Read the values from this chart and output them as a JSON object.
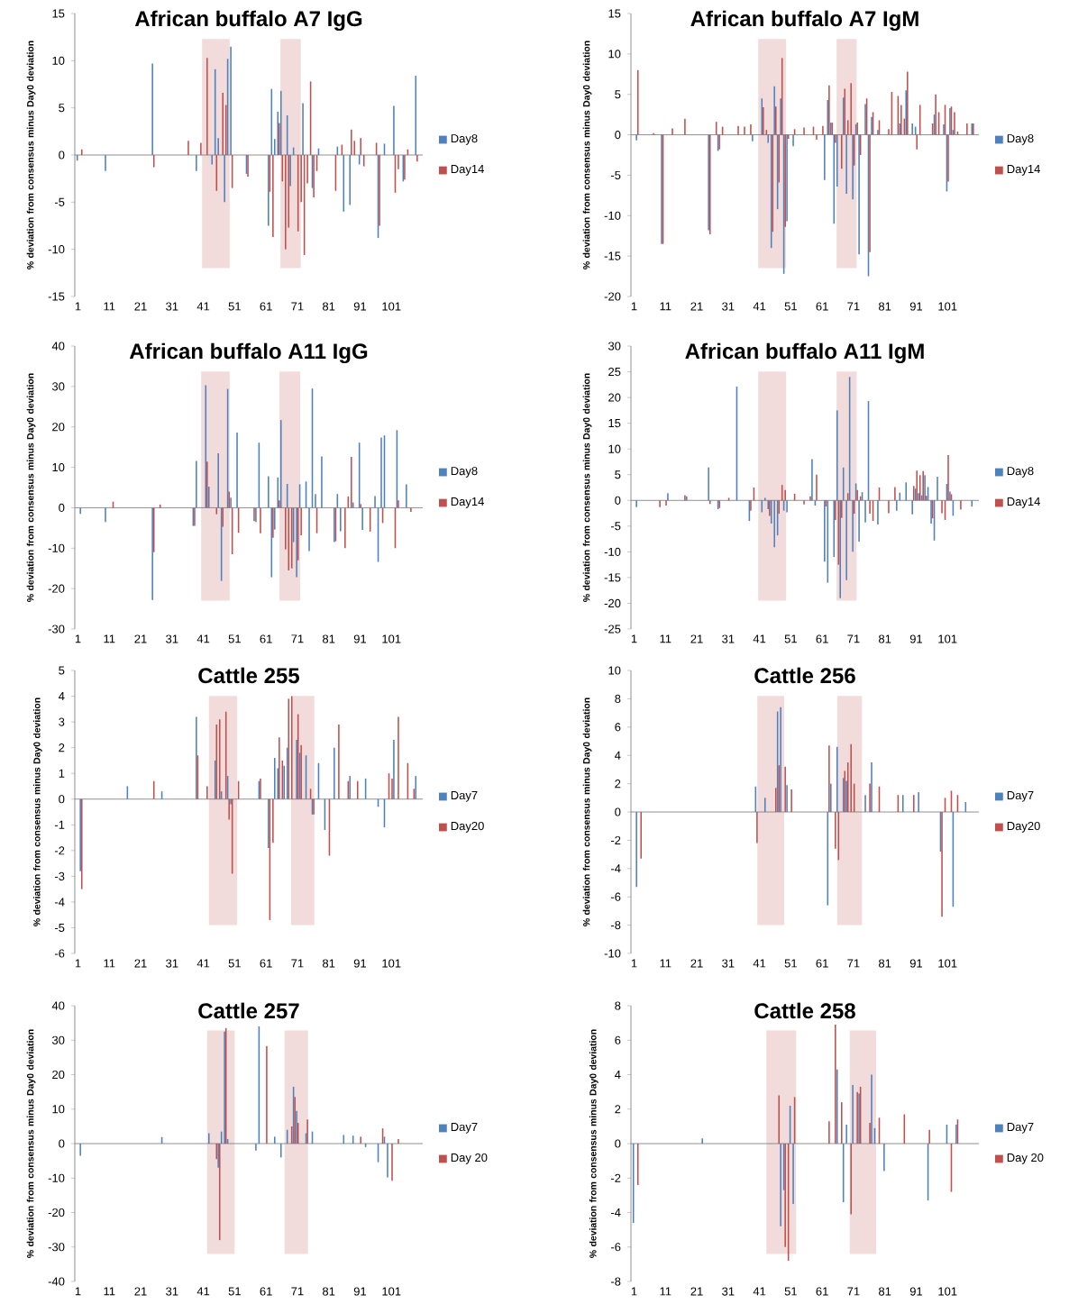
{
  "chart_data": [
    {
      "type": "bar",
      "title": "African buffalo A7 IgG",
      "ylabel": "% deviation from consensus minus Day0 deviation",
      "xlim": [
        0,
        111
      ],
      "xticks": [
        1,
        11,
        21,
        31,
        41,
        51,
        61,
        71,
        81,
        91,
        101
      ],
      "ylim": [
        -15,
        15
      ],
      "yticks": [
        -15,
        -10,
        -5,
        0,
        5,
        10,
        15
      ],
      "legend": "right",
      "bands": [
        {
          "axis": "x",
          "from": 40.6,
          "to": 49.4,
          "color": "#f2dcdb"
        },
        {
          "axis": "x",
          "from": 65.6,
          "to": 72.1,
          "color": "#f2dcdb"
        }
      ],
      "series": [
        {
          "name": "Day8",
          "color": "#4f81bd",
          "x": [
            1,
            10,
            25,
            39,
            44,
            45,
            46,
            48,
            49,
            50,
            55,
            62,
            63,
            64,
            65,
            66,
            68,
            69,
            70,
            73,
            76,
            78,
            84,
            86,
            88,
            91,
            97,
            99,
            102,
            105,
            109
          ],
          "values": [
            -0.6,
            -1.7,
            9.7,
            -1.7,
            -1,
            9.1,
            1.8,
            -5,
            10.2,
            11.5,
            -2,
            -7.5,
            7,
            1.7,
            4.6,
            6.8,
            4.2,
            -3.3,
            0.8,
            5.5,
            -3.5,
            0.7,
            0.9,
            -6,
            -5.3,
            -1,
            -8.8,
            1.2,
            5.2,
            -2.8,
            8.4
          ]
        },
        {
          "name": "Day14",
          "color": "#c0504d",
          "x": [
            2,
            25,
            36,
            40,
            42,
            45,
            47,
            48,
            50,
            55,
            62,
            63,
            65,
            66,
            67,
            68,
            71,
            72,
            73,
            74,
            75,
            76,
            77,
            83,
            85,
            88,
            89,
            91,
            92,
            96,
            97,
            102,
            103,
            105,
            106,
            109
          ],
          "values": [
            0.6,
            -1.3,
            1.5,
            1.3,
            10.3,
            -3.8,
            6.6,
            5.3,
            -3.5,
            -2.3,
            -3.9,
            -8.7,
            3.4,
            -2.8,
            -10,
            -7.7,
            -8.1,
            -5,
            -10.6,
            -3,
            7.8,
            -4.5,
            -1.7,
            -3.8,
            1.1,
            2.7,
            1.5,
            1.8,
            -1.2,
            1.3,
            -7.5,
            -4,
            -1.5,
            -2.6,
            0.6,
            -0.7
          ]
        }
      ]
    },
    {
      "type": "bar",
      "title": "African buffalo A7 IgM",
      "ylabel": "% deviation from consensus minus Day0 deviation",
      "xlim": [
        0,
        111
      ],
      "xticks": [
        1,
        11,
        21,
        31,
        41,
        51,
        61,
        71,
        81,
        91,
        101
      ],
      "ylim": [
        -20,
        15
      ],
      "yticks": [
        -20,
        -15,
        -10,
        -5,
        0,
        5,
        10,
        15
      ],
      "legend": "right",
      "bands": [
        {
          "axis": "x",
          "from": 40.6,
          "to": 49.5,
          "color": "#f2dcdb"
        },
        {
          "axis": "x",
          "from": 65.6,
          "to": 72.0,
          "color": "#f2dcdb"
        }
      ],
      "series": [
        {
          "name": "Day8",
          "color": "#4f81bd",
          "x": [
            2,
            10,
            25,
            28,
            39,
            42,
            44,
            45,
            46,
            47,
            48,
            49,
            50,
            52,
            62,
            63,
            64,
            65,
            66,
            68,
            69,
            71,
            72,
            73,
            75,
            76,
            77,
            79,
            86,
            88,
            90,
            91,
            97,
            100,
            101,
            102,
            103,
            109
          ],
          "values": [
            -0.7,
            -13.5,
            -11.8,
            -2,
            -0.8,
            4.5,
            -1,
            -14,
            6,
            -9.2,
            4.5,
            -17.2,
            -10.7,
            -1.4,
            -5.6,
            4.3,
            1.5,
            -11,
            -6.4,
            4.6,
            -7.3,
            -8,
            1.3,
            -14.8,
            3.8,
            -17.5,
            2.2,
            0.6,
            1.4,
            5.5,
            1.4,
            1,
            2.5,
            1.3,
            -7,
            3.3,
            0.6,
            1.4
          ]
        },
        {
          "name": "Day14",
          "color": "#c0504d",
          "x": [
            2,
            7,
            10,
            13,
            17,
            25,
            27,
            28,
            29,
            34,
            36,
            38,
            42,
            43,
            45,
            46,
            47,
            48,
            49,
            50,
            52,
            55,
            58,
            59,
            61,
            63,
            64,
            65,
            67,
            68,
            69,
            70,
            71,
            72,
            73,
            75,
            76,
            77,
            79,
            82,
            83,
            85,
            86,
            87,
            88,
            91,
            92,
            96,
            97,
            98,
            100,
            101,
            102,
            103,
            104,
            107,
            109
          ],
          "values": [
            8,
            0.2,
            -13.5,
            0.8,
            2,
            -12.3,
            1.6,
            -1.8,
            1,
            1.1,
            1,
            1.3,
            3.4,
            0.6,
            -12,
            3.5,
            -5.9,
            9.5,
            -11.4,
            -0.5,
            0.7,
            0.9,
            1,
            -0.6,
            1.1,
            6.1,
            1.5,
            -1,
            -4.2,
            5.7,
            1.8,
            6.4,
            -3.8,
            1.5,
            -2.5,
            4.5,
            -14.5,
            2.8,
            1.8,
            0.7,
            5.3,
            4.8,
            3.7,
            2,
            7.8,
            -1.8,
            3.7,
            1.4,
            5,
            2.8,
            3.7,
            -5.8,
            3.5,
            2.8,
            0.4,
            1.4,
            1.4
          ]
        }
      ]
    },
    {
      "type": "bar",
      "title": "African buffalo A11 IgG",
      "ylabel": "% deviation from consensus minus Day0 deviation",
      "xlim": [
        0,
        111
      ],
      "xticks": [
        1,
        11,
        21,
        31,
        41,
        51,
        61,
        71,
        81,
        91,
        101
      ],
      "ylim": [
        -30,
        40
      ],
      "yticks": [
        -30,
        -20,
        -10,
        0,
        10,
        20,
        30,
        40
      ],
      "legend": "right",
      "bands": [
        {
          "axis": "x",
          "from": 40.3,
          "to": 49.4,
          "color": "#f2dcdb"
        },
        {
          "axis": "x",
          "from": 65.3,
          "to": 71.9,
          "color": "#f2dcdb"
        }
      ],
      "series": [
        {
          "name": "Day8",
          "color": "#4f81bd",
          "x": [
            2,
            10,
            25,
            38,
            39,
            42,
            43,
            46,
            47,
            49,
            50,
            52,
            58,
            59,
            62,
            63,
            64,
            65,
            66,
            68,
            70,
            71,
            72,
            74,
            75,
            76,
            77,
            79,
            83,
            84,
            85,
            89,
            91,
            92,
            96,
            97,
            98,
            99,
            103,
            106
          ],
          "values": [
            -1.5,
            -3.5,
            -22.8,
            -4.5,
            11.6,
            30.3,
            5.2,
            13.5,
            -18.1,
            29.4,
            2.5,
            18.6,
            -3.5,
            16.1,
            7.8,
            -17.2,
            -5.4,
            7.5,
            21.7,
            5.9,
            -8.5,
            -17.2,
            5.8,
            6.5,
            -10.7,
            29.5,
            3.4,
            12.7,
            -8.5,
            3.4,
            -5.8,
            1.3,
            16.1,
            -5.5,
            2.9,
            -13.4,
            17.4,
            17.9,
            19.2,
            5.8
          ]
        },
        {
          "name": "Day14",
          "color": "#c0504d",
          "x": [
            12,
            25,
            27,
            38,
            42,
            45,
            47,
            49,
            50,
            52,
            57,
            59,
            63,
            65,
            67,
            68,
            69,
            71,
            72,
            77,
            83,
            86,
            87,
            88,
            91,
            94,
            98,
            102,
            103,
            107
          ],
          "values": [
            1.5,
            -11,
            0.8,
            -4.5,
            11.4,
            -1.6,
            -4.7,
            4,
            -11.5,
            -6.2,
            -3.3,
            -6.3,
            -7.4,
            1.8,
            -10.3,
            -15.5,
            -15,
            -13,
            -6.8,
            -6.3,
            -8.3,
            -10,
            2.8,
            12.6,
            0.9,
            -5.9,
            -3.8,
            -10,
            1.8,
            -1
          ]
        }
      ]
    },
    {
      "type": "bar",
      "title": "African buffalo A11 IgM",
      "ylabel": "% deviation from consensus minus Day0 deviation",
      "xlim": [
        0,
        111
      ],
      "xticks": [
        1,
        11,
        21,
        31,
        41,
        51,
        61,
        71,
        81,
        91,
        101
      ],
      "ylim": [
        -25,
        30
      ],
      "yticks": [
        -25,
        -20,
        -15,
        -10,
        -5,
        0,
        5,
        10,
        15,
        20,
        25,
        30
      ],
      "legend": "right",
      "bands": [
        {
          "axis": "x",
          "from": 40.6,
          "to": 49.5,
          "color": "#f2dcdb"
        },
        {
          "axis": "x",
          "from": 65.6,
          "to": 72.0,
          "color": "#f2dcdb"
        }
      ],
      "series": [
        {
          "name": "Day8",
          "color": "#4f81bd",
          "x": [
            2,
            12,
            18,
            25,
            28,
            34,
            38,
            42,
            43,
            44,
            45,
            46,
            47,
            49,
            50,
            58,
            59,
            62,
            63,
            65,
            66,
            67,
            68,
            69,
            70,
            71,
            72,
            73,
            74,
            75,
            76,
            79,
            85,
            86,
            88,
            90,
            91,
            92,
            93,
            94,
            95,
            96,
            97,
            98,
            101,
            102,
            103,
            109
          ],
          "values": [
            -1.3,
            1.4,
            0.8,
            6.4,
            -1.7,
            22.1,
            -4,
            -2.3,
            0.5,
            -1.7,
            -4.5,
            -9.1,
            -6.8,
            -2,
            -2.3,
            8,
            -1,
            -11.9,
            -16,
            -11,
            17.5,
            -19,
            6.4,
            -15.5,
            24,
            -10,
            3.3,
            -8,
            1.6,
            -4.3,
            19.3,
            -4.7,
            -2,
            1.5,
            3.5,
            -2.7,
            2.3,
            1.4,
            1,
            4.9,
            2.6,
            -4.5,
            -7.8,
            4.6,
            3.2,
            1.7,
            -3,
            -1.2
          ]
        },
        {
          "name": "Day14",
          "color": "#c0504d",
          "x": [
            9,
            11,
            17,
            25,
            28,
            31,
            38,
            39,
            44,
            47,
            48,
            49,
            52,
            55,
            57,
            59,
            62,
            65,
            66,
            67,
            69,
            71,
            72,
            73,
            76,
            77,
            79,
            82,
            84,
            90,
            91,
            92,
            93,
            94,
            96,
            99,
            100,
            101,
            102,
            105
          ],
          "values": [
            -1.3,
            -1,
            1,
            -0.7,
            -1.5,
            0.5,
            -2,
            2.5,
            -3,
            -2.6,
            3,
            2,
            1.3,
            -0.8,
            0.8,
            5,
            -1.2,
            -3.8,
            -12.5,
            -3.4,
            1.4,
            -2.6,
            2,
            0.8,
            -2.6,
            -4,
            2.5,
            -2.5,
            2.6,
            2.8,
            5.8,
            4.9,
            5.7,
            0.9,
            -3.5,
            -2.5,
            -3.8,
            8.8,
            1.2,
            -1.8
          ]
        }
      ]
    },
    {
      "type": "bar",
      "title": "Cattle 255",
      "ylabel": "% deviation from consensus minus Day0 deviation",
      "xlim": [
        0,
        111
      ],
      "xticks": [
        1,
        11,
        21,
        31,
        41,
        51,
        61,
        71,
        81,
        91,
        101
      ],
      "ylim": [
        -6,
        5
      ],
      "yticks": [
        -6,
        -5,
        -4,
        -3,
        -2,
        -1,
        0,
        1,
        2,
        3,
        4,
        5
      ],
      "legend": "right",
      "bands": [
        {
          "axis": "x",
          "from": 42.8,
          "to": 51.8,
          "color": "#f2dcdb"
        },
        {
          "axis": "x",
          "from": 69.0,
          "to": 76.4,
          "color": "#f2dcdb"
        }
      ],
      "series": [
        {
          "name": "Day7",
          "color": "#4f81bd",
          "x": [
            2,
            17,
            28,
            39,
            45,
            47,
            49,
            50,
            59,
            62,
            64,
            65,
            67,
            68,
            71,
            72,
            74,
            76,
            78,
            80,
            83,
            88,
            93,
            97,
            99,
            102,
            109
          ],
          "values": [
            -2.8,
            0.5,
            0.3,
            3.2,
            1.5,
            0.3,
            0.9,
            -0.2,
            0.7,
            -1.9,
            1.6,
            1.2,
            1.3,
            2,
            2.3,
            1.8,
            1.7,
            -0.6,
            1.4,
            -1.2,
            2,
            0.9,
            0.8,
            -0.3,
            -1.1,
            2.3,
            0.9
          ]
        },
        {
          "name": "Day20",
          "color": "#c0504d",
          "x": [
            2,
            25,
            39,
            42,
            45,
            46,
            48,
            49,
            50,
            52,
            59,
            62,
            63,
            65,
            66,
            68,
            69,
            71,
            72,
            75,
            76,
            81,
            84,
            87,
            90,
            100,
            101,
            103,
            106,
            108
          ],
          "values": [
            -3.5,
            0.7,
            1.7,
            0.5,
            2.9,
            3.1,
            3.4,
            -0.8,
            -2.9,
            0.7,
            0.8,
            -4.7,
            -1.7,
            2.4,
            1.5,
            3.9,
            4,
            3.3,
            2.1,
            0.4,
            -0.6,
            -2.2,
            2.9,
            0.7,
            0.7,
            1,
            0.8,
            3.2,
            1.4,
            0.4
          ]
        }
      ]
    },
    {
      "type": "bar",
      "title": "Cattle 256",
      "ylabel": "% deviation from consensus minus Day0 deviation",
      "xlim": [
        0,
        111
      ],
      "xticks": [
        1,
        11,
        21,
        31,
        41,
        51,
        61,
        71,
        81,
        91,
        101
      ],
      "ylim": [
        -10,
        10
      ],
      "yticks": [
        -10,
        -8,
        -6,
        -4,
        -2,
        0,
        2,
        4,
        6,
        8,
        10
      ],
      "legend": "right",
      "bands": [
        {
          "axis": "x",
          "from": 40.3,
          "to": 48.9,
          "color": "#f2dcdb"
        },
        {
          "axis": "x",
          "from": 65.8,
          "to": 73.7,
          "color": "#f2dcdb"
        }
      ],
      "series": [
        {
          "name": "Day7",
          "color": "#4f81bd",
          "x": [
            2,
            40,
            43,
            47,
            48,
            50,
            63,
            64,
            66,
            68,
            69,
            75,
            77,
            87,
            92,
            99,
            103,
            107
          ],
          "values": [
            -5.3,
            1.8,
            1,
            7.1,
            7.4,
            1.9,
            -6.6,
            2,
            4.6,
            2.4,
            2.2,
            1.2,
            3.5,
            1.2,
            1.4,
            -2.8,
            -6.7,
            0.7
          ]
        },
        {
          "name": "Day20",
          "color": "#c0504d",
          "x": [
            3,
            40,
            46,
            47,
            49,
            51,
            63,
            65,
            66,
            68,
            69,
            70,
            71,
            76,
            79,
            85,
            90,
            99,
            100,
            102,
            104
          ],
          "values": [
            -3.3,
            -2.2,
            1.7,
            3.3,
            3.2,
            1.6,
            4.7,
            -2.6,
            -3.4,
            2.9,
            3.5,
            4.8,
            2,
            2,
            1.8,
            1.2,
            1.2,
            -7.4,
            1,
            1.5,
            1.2
          ]
        }
      ]
    },
    {
      "type": "bar",
      "title": "Cattle 257",
      "ylabel": "% deviation from consensus minus Day0 deviation",
      "xlim": [
        0,
        111
      ],
      "xticks": [
        1,
        11,
        21,
        31,
        41,
        51,
        61,
        71,
        81,
        91,
        101
      ],
      "ylim": [
        -40,
        40
      ],
      "yticks": [
        -40,
        -30,
        -20,
        -10,
        0,
        10,
        20,
        30,
        40
      ],
      "legend": "right",
      "bands": [
        {
          "axis": "x",
          "from": 42.2,
          "to": 51.0,
          "color": "#f2dcdb"
        },
        {
          "axis": "x",
          "from": 66.9,
          "to": 74.4,
          "color": "#f2dcdb"
        }
      ],
      "series": [
        {
          "name": "Day7",
          "color": "#4f81bd",
          "x": [
            2,
            28,
            43,
            46,
            47,
            48,
            49,
            58,
            59,
            64,
            66,
            68,
            70,
            71,
            74,
            76,
            86,
            89,
            93,
            97,
            99,
            100
          ],
          "values": [
            -3.5,
            1.9,
            3,
            -7,
            3.5,
            32.5,
            1.3,
            -2,
            34,
            2,
            -4,
            4,
            16.5,
            9.5,
            3,
            3.5,
            2.5,
            2.3,
            -1,
            -5.4,
            2,
            -9.8
          ]
        },
        {
          "name": "Day 20",
          "color": "#c0504d",
          "x": [
            45,
            46,
            48,
            61,
            69,
            70,
            71,
            74,
            91,
            98,
            101,
            103
          ],
          "values": [
            -4.5,
            -28,
            33.5,
            28.3,
            5,
            13.5,
            6,
            7,
            2,
            4.4,
            -10.8,
            1.3
          ]
        }
      ]
    },
    {
      "type": "bar",
      "title": "Cattle 258",
      "ylabel": "% deviation from consensus minus Day0 deviation",
      "xlim": [
        0,
        111
      ],
      "xticks": [
        1,
        11,
        21,
        31,
        41,
        51,
        61,
        71,
        81,
        91,
        101
      ],
      "ylim": [
        -8,
        8
      ],
      "yticks": [
        -8,
        -6,
        -4,
        -2,
        0,
        2,
        4,
        6,
        8
      ],
      "legend": "right",
      "bands": [
        {
          "axis": "x",
          "from": 43.2,
          "to": 52.7,
          "color": "#f2dcdb"
        },
        {
          "axis": "x",
          "from": 69.8,
          "to": 78.2,
          "color": "#f2dcdb"
        }
      ],
      "series": [
        {
          "name": "Day7",
          "color": "#4f81bd",
          "x": [
            1,
            23,
            48,
            49,
            51,
            52,
            66,
            68,
            69,
            71,
            73,
            77,
            78,
            81,
            95,
            101,
            104
          ],
          "values": [
            -4.6,
            0.3,
            -4.8,
            -2.7,
            2.2,
            -3.5,
            4.3,
            -3.4,
            1.1,
            3.4,
            2.9,
            4,
            0.9,
            -1.6,
            -3.3,
            1.1,
            1.1
          ]
        },
        {
          "name": "Day 20",
          "color": "#c0504d",
          "x": [
            2,
            47,
            49,
            50,
            52,
            63,
            65,
            67,
            70,
            72,
            73,
            76,
            79,
            87,
            95,
            102,
            104
          ],
          "values": [
            -2.4,
            2.8,
            -6,
            -6.8,
            2.7,
            1.3,
            6.9,
            2.4,
            -4.1,
            3,
            3.3,
            1.2,
            1.5,
            1.7,
            0.8,
            -2.8,
            1.4
          ]
        }
      ]
    }
  ]
}
